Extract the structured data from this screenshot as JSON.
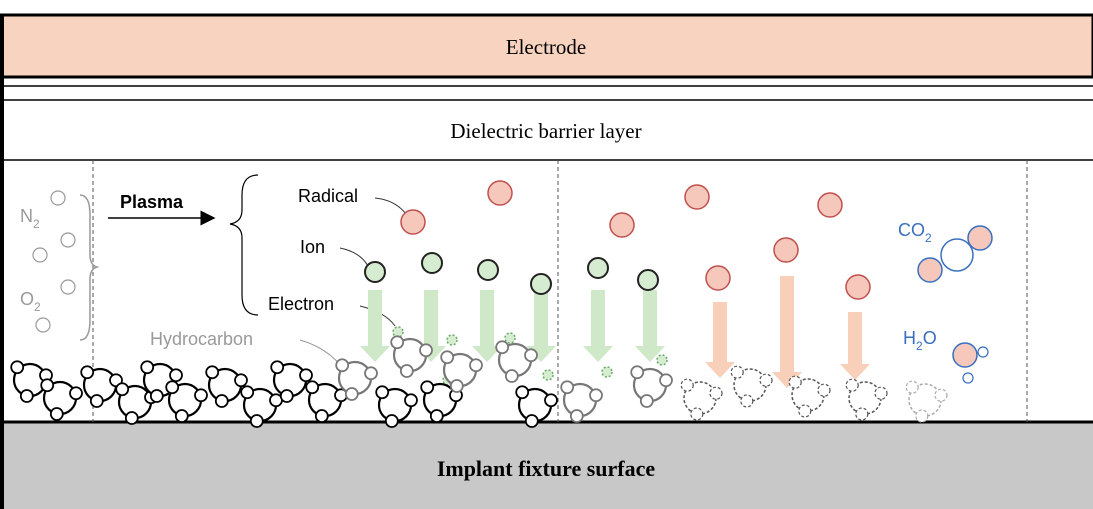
{
  "layers": {
    "electrode": "Electrode",
    "dielectric": "Dielectric barrier layer",
    "implant": "Implant fixture surface"
  },
  "gases": {
    "n2": {
      "base": "N",
      "sub": "2"
    },
    "o2": {
      "base": "O",
      "sub": "2"
    }
  },
  "process": "Plasma",
  "species": {
    "radical": "Radical",
    "ion": "Ion",
    "electron": "Electron",
    "hydrocarbon": "Hydrocarbon"
  },
  "products": {
    "co2": {
      "base": "CO",
      "sub": "2"
    },
    "h2o": {
      "base": "H",
      "sub": "2",
      "tail": "O"
    }
  }
}
